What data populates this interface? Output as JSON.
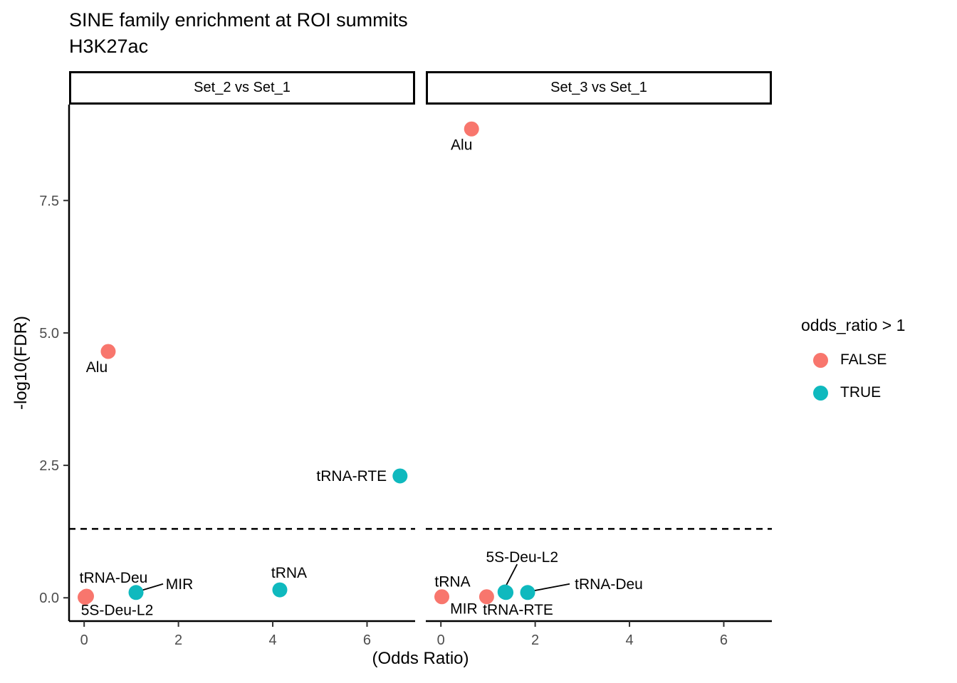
{
  "title": "SINE family enrichment at ROI summits",
  "subtitle": "H3K27ac",
  "chart_data": {
    "type": "scatter",
    "title": "SINE family enrichment at ROI summits",
    "subtitle": "H3K27ac",
    "xlabel": "(Odds Ratio)",
    "ylabel": "-log10(FDR)",
    "xlim": [
      -0.32,
      7.02
    ],
    "ylim": [
      -0.44,
      9.31
    ],
    "grid": false,
    "hline_y": 1.301,
    "hline_style": "dashed",
    "x_ticks": [
      {
        "v": 0,
        "label": "0"
      },
      {
        "v": 2,
        "label": "2"
      },
      {
        "v": 4,
        "label": "4"
      },
      {
        "v": 6,
        "label": "6"
      }
    ],
    "y_ticks": [
      {
        "v": 0,
        "label": "0.0"
      },
      {
        "v": 2.5,
        "label": "2.5"
      },
      {
        "v": 5,
        "label": "5.0"
      },
      {
        "v": 7.5,
        "label": "7.5"
      }
    ],
    "legend": {
      "title": "odds_ratio > 1",
      "position": "right",
      "items": [
        {
          "label": "FALSE",
          "color": "#F8766D"
        },
        {
          "label": "TRUE",
          "color": "#0FB9BE"
        }
      ]
    },
    "facets": [
      {
        "label": "Set_2 vs Set_1",
        "points": [
          {
            "family": "Alu",
            "odds_ratio": 0.51,
            "neg_log10_fdr": 4.65,
            "group": "FALSE",
            "label_offset": [
              -16,
              22
            ],
            "leader": null
          },
          {
            "family": "tRNA-RTE",
            "odds_ratio": 6.7,
            "neg_log10_fdr": 2.3,
            "group": "TRUE",
            "label_offset": [
              -68,
              0
            ],
            "leader": null
          },
          {
            "family": "tRNA",
            "odds_ratio": 4.15,
            "neg_log10_fdr": 0.15,
            "group": "TRUE",
            "label_offset": [
              13,
              -24
            ],
            "leader": null
          },
          {
            "family": "MIR",
            "odds_ratio": 1.1,
            "neg_log10_fdr": 0.1,
            "group": "TRUE",
            "label_offset": [
              61,
              -12
            ],
            "leader": [
              [
                8,
                -3
              ],
              [
                38,
                -12
              ]
            ]
          },
          {
            "family": "tRNA-Deu",
            "odds_ratio": 0.05,
            "neg_log10_fdr": 0.03,
            "group": "FALSE",
            "label_offset": [
              38,
              -26
            ],
            "leader": null
          },
          {
            "family": "5S-Deu-L2",
            "odds_ratio": 0.02,
            "neg_log10_fdr": 0.01,
            "group": "FALSE",
            "label_offset": [
              45,
              18
            ],
            "leader": null
          }
        ]
      },
      {
        "label": "Set_3 vs Set_1",
        "points": [
          {
            "family": "Alu",
            "odds_ratio": 0.65,
            "neg_log10_fdr": 8.85,
            "group": "FALSE",
            "label_offset": [
              -14,
              22
            ],
            "leader": null
          },
          {
            "family": "tRNA",
            "odds_ratio": 0.02,
            "neg_log10_fdr": 0.02,
            "group": "FALSE",
            "label_offset": [
              15,
              -21
            ],
            "leader": null
          },
          {
            "family": "MIR",
            "odds_ratio": 0.97,
            "neg_log10_fdr": 0.02,
            "group": "FALSE",
            "label_offset": [
              -32,
              17
            ],
            "leader": null
          },
          {
            "family": "tRNA-RTE",
            "odds_ratio": 1.38,
            "neg_log10_fdr": 0.1,
            "group": "TRUE",
            "label_offset": [
              17,
              24
            ],
            "leader": null
          },
          {
            "family": "5S-Deu-L2",
            "odds_ratio": 1.36,
            "neg_log10_fdr": 0.11,
            "group": "TRUE",
            "label_offset": [
              24,
              -49
            ],
            "leader": [
              [
                17,
                -39
              ],
              [
                2,
                -10
              ]
            ]
          },
          {
            "family": "tRNA-Deu",
            "odds_ratio": 1.84,
            "neg_log10_fdr": 0.1,
            "group": "TRUE",
            "label_offset": [
              114,
              -12
            ],
            "leader": [
              [
                6,
                -2
              ],
              [
                59,
                -12
              ]
            ]
          }
        ]
      }
    ]
  }
}
